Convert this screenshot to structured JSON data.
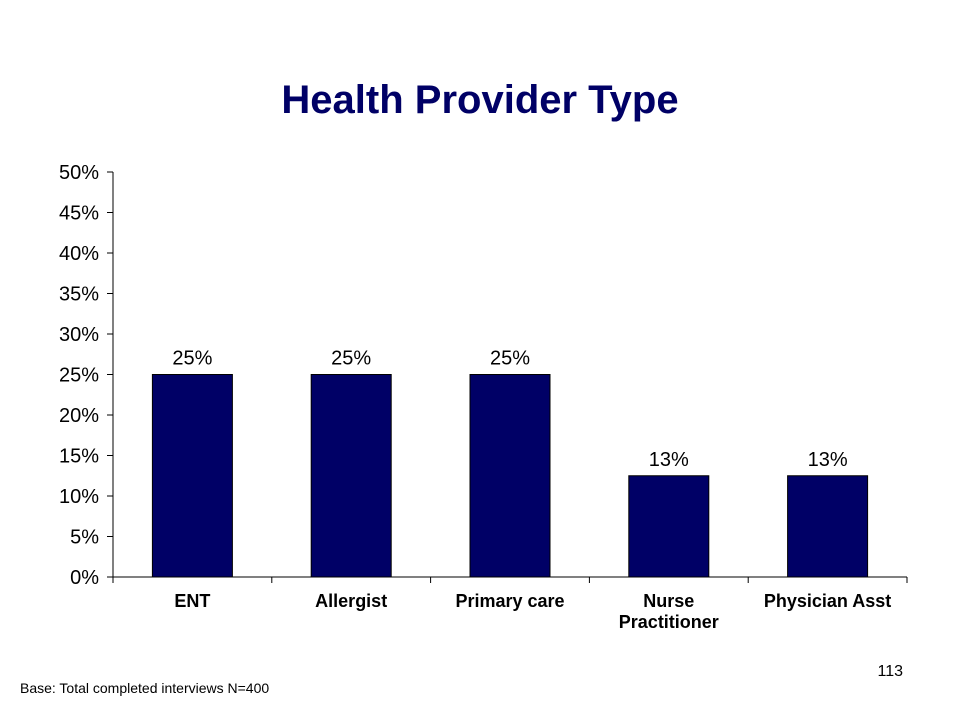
{
  "slide": {
    "title": "Health Provider Type",
    "footnote": "Base: Total completed interviews N=400",
    "page_number": "113"
  },
  "colors": {
    "bar": "#000066",
    "title": "#000066",
    "axis": "#000000"
  },
  "chart_data": {
    "type": "bar",
    "title": "Health Provider Type",
    "categories": [
      [
        "ENT"
      ],
      [
        "Allergist"
      ],
      [
        "Primary care"
      ],
      [
        "Nurse",
        "Practitioner"
      ],
      [
        "Physician Asst"
      ]
    ],
    "values": [
      25,
      25,
      25,
      12.5,
      12.5
    ],
    "data_labels": [
      "25%",
      "25%",
      "25%",
      "13%",
      "13%"
    ],
    "y_ticks": [
      "0%",
      "5%",
      "10%",
      "15%",
      "20%",
      "25%",
      "30%",
      "35%",
      "40%",
      "45%",
      "50%"
    ],
    "ylim": [
      0,
      50
    ],
    "xlabel": "",
    "ylabel": "",
    "grid": false,
    "legend": false
  }
}
